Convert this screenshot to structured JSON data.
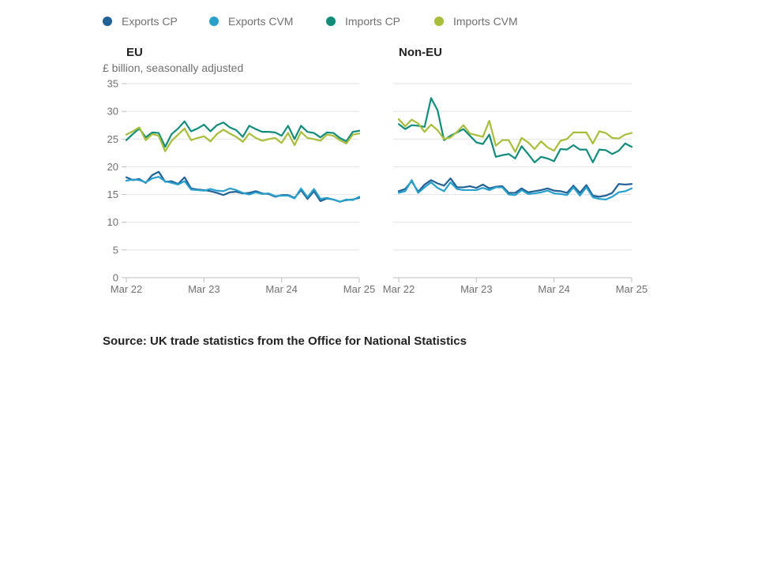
{
  "chart_data": {
    "type": "line",
    "units_label": "£ billion, seasonally adjusted",
    "source": "Source: UK trade statistics from the Office for National Statistics",
    "legend": [
      {
        "name": "Exports CP",
        "color": "#206095"
      },
      {
        "name": "Exports CVM",
        "color": "#27a0cc"
      },
      {
        "name": "Imports CP",
        "color": "#118c7b"
      },
      {
        "name": "Imports CVM",
        "color": "#a8bd3a"
      }
    ],
    "x_ticks": [
      "Mar 22",
      "Mar 23",
      "Mar 24",
      "Mar 25"
    ],
    "ylim": [
      0,
      35
    ],
    "y_ticks": [
      0,
      5,
      10,
      15,
      20,
      25,
      30,
      35
    ],
    "grid": true,
    "legend_position": "top",
    "panels": [
      {
        "title": "EU",
        "series": [
          {
            "name": "Exports CP",
            "color": "#206095",
            "values": [
              18.1,
              17.6,
              17.8,
              17.1,
              18.5,
              19.1,
              17.3,
              17.4,
              16.9,
              18.1,
              16.1,
              15.9,
              15.8,
              15.6,
              15.3,
              14.9,
              15.4,
              15.5,
              15.2,
              15.3,
              15.6,
              15.2,
              15.1,
              14.6,
              14.9,
              14.9,
              14.4,
              15.8,
              14.2,
              15.6,
              13.8,
              14.3,
              14.1,
              13.7,
              14.0,
              14.1,
              14.4
            ]
          },
          {
            "name": "Exports CVM",
            "color": "#27a0cc",
            "values": [
              17.5,
              17.7,
              17.6,
              17.2,
              17.9,
              18.2,
              17.4,
              17.1,
              16.8,
              17.4,
              15.9,
              15.8,
              15.7,
              16.0,
              15.7,
              15.6,
              16.1,
              15.8,
              15.3,
              15.0,
              15.4,
              15.1,
              15.2,
              14.7,
              14.8,
              14.8,
              14.3,
              16.1,
              14.5,
              16.0,
              14.2,
              14.4,
              14.1,
              13.7,
              14.1,
              14.0,
              14.6
            ]
          },
          {
            "name": "Imports CP",
            "color": "#118c7b",
            "values": [
              24.8,
              25.9,
              26.9,
              25.3,
              26.2,
              26.1,
              23.6,
              25.9,
              26.9,
              28.2,
              26.4,
              26.9,
              27.6,
              26.4,
              27.5,
              28.0,
              27.1,
              26.6,
              25.4,
              27.4,
              26.8,
              26.3,
              26.3,
              26.2,
              25.6,
              27.4,
              25.0,
              27.4,
              26.3,
              26.1,
              25.3,
              26.2,
              26.1,
              25.2,
              24.6,
              26.3,
              26.5
            ]
          },
          {
            "name": "Imports CVM",
            "color": "#a8bd3a",
            "values": [
              25.8,
              26.4,
              27.1,
              24.8,
              25.9,
              25.6,
              22.8,
              24.7,
              25.8,
              26.9,
              24.8,
              25.2,
              25.5,
              24.6,
              25.9,
              26.7,
              26.0,
              25.4,
              24.5,
              26.0,
              25.2,
              24.7,
              25.0,
              25.2,
              24.3,
              26.1,
              23.9,
              26.3,
              25.2,
              25.0,
              24.7,
              25.8,
              25.6,
              24.8,
              24.2,
              25.8,
              26.0
            ]
          }
        ]
      },
      {
        "title": "Non-EU",
        "series": [
          {
            "name": "Exports CP",
            "color": "#206095",
            "values": [
              15.6,
              16.0,
              17.4,
              15.5,
              16.8,
              17.6,
              17.0,
              16.6,
              17.9,
              16.3,
              16.3,
              16.5,
              16.2,
              16.8,
              16.1,
              16.4,
              16.5,
              15.3,
              15.3,
              16.1,
              15.4,
              15.6,
              15.8,
              16.1,
              15.7,
              15.6,
              15.3,
              16.6,
              15.3,
              16.7,
              14.8,
              14.6,
              14.8,
              15.3,
              16.9,
              16.8,
              16.9
            ]
          },
          {
            "name": "Exports CVM",
            "color": "#27a0cc",
            "values": [
              15.3,
              15.6,
              17.6,
              15.3,
              16.3,
              17.2,
              16.2,
              15.6,
              17.2,
              16.0,
              15.8,
              15.8,
              15.8,
              16.2,
              15.8,
              16.3,
              16.3,
              15.0,
              14.9,
              15.8,
              15.1,
              15.2,
              15.4,
              15.7,
              15.2,
              15.1,
              14.9,
              16.3,
              14.8,
              16.3,
              14.5,
              14.2,
              14.1,
              14.6,
              15.4,
              15.6,
              16.1
            ]
          },
          {
            "name": "Imports CP",
            "color": "#118c7b",
            "values": [
              27.7,
              26.8,
              27.5,
              27.4,
              27.2,
              32.4,
              30.2,
              24.8,
              25.6,
              26.2,
              26.8,
              25.6,
              24.4,
              24.1,
              25.8,
              21.8,
              22.1,
              22.3,
              21.5,
              23.7,
              22.3,
              20.8,
              21.8,
              21.5,
              21.0,
              23.2,
              23.1,
              23.9,
              23.1,
              23.1,
              20.8,
              23.1,
              23.0,
              22.3,
              22.9,
              24.2,
              23.6
            ]
          },
          {
            "name": "Imports CVM",
            "color": "#a8bd3a",
            "values": [
              28.6,
              27.3,
              28.5,
              27.8,
              26.3,
              27.6,
              26.6,
              25.0,
              25.3,
              26.3,
              27.5,
              26.0,
              25.7,
              25.4,
              28.3,
              23.8,
              24.8,
              24.8,
              22.7,
              25.2,
              24.4,
              23.2,
              24.6,
              23.5,
              22.9,
              24.7,
              25.0,
              26.2,
              26.2,
              26.2,
              24.2,
              26.4,
              26.1,
              25.2,
              25.1,
              25.8,
              26.1
            ]
          }
        ]
      }
    ]
  }
}
